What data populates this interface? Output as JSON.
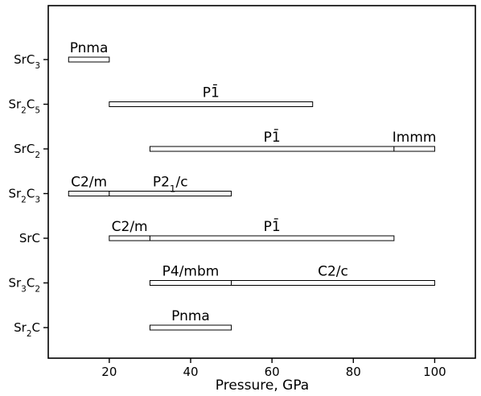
{
  "chart_data": {
    "type": "bar",
    "orientation": "horizontal-ranges",
    "xlabel": "Pressure, GPa",
    "xlim": [
      5,
      110
    ],
    "xticks": [
      20,
      40,
      60,
      80,
      100
    ],
    "grid": false,
    "rows": [
      {
        "name": "SrC3",
        "base": "SrC",
        "sub": "3",
        "phases": [
          {
            "label": "Pnma",
            "start": 10,
            "end": 20
          }
        ]
      },
      {
        "name": "Sr2C5",
        "parts": [
          [
            "Sr",
            ""
          ],
          [
            "2",
            "sub"
          ],
          [
            "C",
            ""
          ],
          [
            "5",
            "sub"
          ]
        ],
        "phases": [
          {
            "label": "P1̄",
            "start": 20,
            "end": 70
          }
        ]
      },
      {
        "name": "SrC2",
        "parts": [
          [
            "SrC",
            ""
          ],
          [
            "2",
            "sub"
          ]
        ],
        "phases": [
          {
            "label": "P1̄",
            "start": 30,
            "end": 90
          },
          {
            "label": "Immm",
            "start": 90,
            "end": 100
          }
        ]
      },
      {
        "name": "Sr2C3",
        "parts": [
          [
            "Sr",
            ""
          ],
          [
            "2",
            "sub"
          ],
          [
            "C",
            ""
          ],
          [
            "3",
            "sub"
          ]
        ],
        "phases": [
          {
            "label": "C2/m",
            "start": 10,
            "end": 20
          },
          {
            "label": "P21/c",
            "parts": [
              [
                "P2",
                ""
              ],
              [
                "1",
                "sub"
              ],
              [
                "/c",
                ""
              ]
            ],
            "start": 20,
            "end": 50
          }
        ]
      },
      {
        "name": "SrC",
        "parts": [
          [
            "SrC",
            ""
          ]
        ],
        "phases": [
          {
            "label": "C2/m",
            "start": 20,
            "end": 30
          },
          {
            "label": "P1̄",
            "start": 30,
            "end": 90
          }
        ]
      },
      {
        "name": "Sr3C2",
        "parts": [
          [
            "Sr",
            ""
          ],
          [
            "3",
            "sub"
          ],
          [
            "C",
            ""
          ],
          [
            "2",
            "sub"
          ]
        ],
        "phases": [
          {
            "label": "P4/mbm",
            "start": 30,
            "end": 50
          },
          {
            "label": "C2/c",
            "start": 50,
            "end": 100
          }
        ]
      },
      {
        "name": "Sr2C",
        "parts": [
          [
            "Sr",
            ""
          ],
          [
            "2",
            "sub"
          ],
          [
            "C",
            ""
          ]
        ],
        "phases": [
          {
            "label": "Pnma",
            "start": 30,
            "end": 50
          }
        ]
      }
    ]
  }
}
